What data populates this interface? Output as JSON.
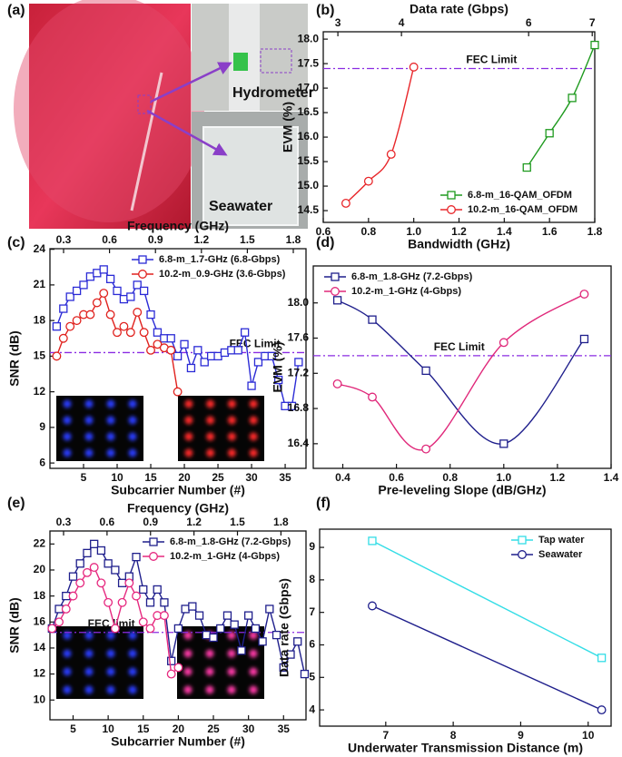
{
  "photo": {
    "panel_label": "(a)",
    "labels": [
      "Hydrometer",
      "Seawater"
    ]
  },
  "chart_data": [
    {
      "type": "line",
      "panel_label": "(b)",
      "xlabel": "Bandwidth (GHz)",
      "ylabel": "EVM (%)",
      "x2label": "Data rate (Gbps)",
      "xlim": [
        0.6,
        1.8
      ],
      "xticks": [
        0.6,
        0.8,
        {
          "value": 1,
          "label": "1.0"
        },
        1.2,
        1.4,
        1.6,
        1.8
      ],
      "x2lim": [
        2.77,
        7.04
      ],
      "x2ticks": [
        3,
        4,
        6,
        7
      ],
      "ylim": [
        14.26,
        18.15
      ],
      "yticks": [
        14.5,
        {
          "value": 15,
          "label": "15.0"
        },
        15.5,
        {
          "value": 16,
          "label": "16.0"
        },
        16.5,
        {
          "value": 17,
          "label": "17.0"
        },
        17.5,
        {
          "value": 18,
          "label": "18.0"
        }
      ],
      "smooth": true,
      "legend": "lower right",
      "hline": {
        "label": "FEC Limit",
        "value": 17.4,
        "color": "#8a2be2"
      },
      "series": [
        {
          "name": "6.8-m_16-QAM_OFDM",
          "color": "#1f9a1f",
          "marker": "square",
          "x": [
            1.5,
            1.6,
            1.7,
            1.8
          ],
          "values": [
            15.38,
            16.08,
            16.8,
            17.88
          ]
        },
        {
          "name": "10.2-m_16-QAM_OFDM",
          "color": "#e8262a",
          "marker": "circle",
          "x": [
            0.7,
            0.8,
            0.9,
            1.0
          ],
          "values": [
            14.65,
            15.1,
            15.65,
            17.43
          ]
        }
      ]
    },
    {
      "type": "line",
      "panel_label": "(c)",
      "xlabel": "Subcarrier Number (#)",
      "ylabel": "SNR (dB)",
      "x2label": "Frequency (GHz)",
      "xlim": [
        0,
        38.1
      ],
      "xticks": [
        5,
        10,
        15,
        20,
        25,
        30,
        35
      ],
      "x2lim": [
        0.211,
        1.883
      ],
      "x2ticks": [
        0.3,
        0.6,
        0.9,
        1.2,
        1.5,
        1.8
      ],
      "ylim": [
        5.55,
        24.05
      ],
      "yticks": [
        6,
        9,
        12,
        15,
        18,
        21,
        24
      ],
      "smooth": false,
      "legend": "upper right",
      "hline": {
        "label": "FEC Limit",
        "value": 15.3,
        "color": "#8a2be2"
      },
      "series": [
        {
          "name": "6.8-m_1.7-GHz (6.8-Gbps)",
          "color": "#2b2bd6",
          "marker": "square",
          "x": [
            1,
            2,
            3,
            4,
            5,
            6,
            7,
            8,
            9,
            10,
            11,
            12,
            13,
            14,
            15,
            16,
            17,
            18,
            19,
            20,
            21,
            22,
            23,
            24,
            25,
            26,
            27,
            28,
            29,
            30,
            31,
            32,
            33,
            34,
            35,
            36,
            37
          ],
          "values": [
            17.5,
            19,
            20,
            20.5,
            21,
            21.7,
            22,
            22.3,
            21.5,
            20.5,
            19.8,
            20,
            21,
            20.5,
            18.5,
            17,
            16.5,
            16.5,
            15,
            16,
            14,
            15.5,
            14.5,
            15,
            15,
            15.3,
            15.5,
            15.5,
            17,
            12.5,
            14.5,
            15,
            15,
            13,
            10.8,
            10.8,
            14.5
          ]
        },
        {
          "name": "10.2-m_0.9-GHz (3.6-Gbps)",
          "color": "#e0221e",
          "marker": "circle",
          "x": [
            1,
            2,
            3,
            4,
            5,
            6,
            7,
            8,
            9,
            10,
            11,
            12,
            13,
            14,
            15,
            16,
            17,
            18,
            19
          ],
          "values": [
            15,
            16.5,
            17.5,
            18,
            18.5,
            18.5,
            19.5,
            20.3,
            18.5,
            17,
            17.5,
            17,
            18.7,
            17,
            15.5,
            16,
            15.7,
            15.5,
            12
          ]
        }
      ]
    },
    {
      "type": "line",
      "panel_label": "(d)",
      "xlabel": "Pre-leveling Slope (dB/GHz)",
      "ylabel": "EVM (%)",
      "xlim": [
        0.29,
        1.4
      ],
      "xticks": [
        0.4,
        0.6,
        0.8,
        {
          "value": 1,
          "label": "1.0"
        },
        1.2,
        1.4
      ],
      "ylim": [
        16.12,
        18.42
      ],
      "yticks": [
        16.4,
        16.8,
        17.2,
        17.6,
        {
          "value": 18,
          "label": "18.0"
        }
      ],
      "smooth": true,
      "legend": "upper left",
      "hline": {
        "label": "FEC Limit",
        "value": 17.4,
        "color": "#8a2be2"
      },
      "series": [
        {
          "name": "6.8-m_1.8-GHz (7.2-Gbps)",
          "color": "#1f1f8c",
          "marker": "square",
          "x": [
            0.38,
            0.51,
            0.71,
            1.0,
            1.3
          ],
          "values": [
            18.03,
            17.81,
            17.23,
            16.4,
            17.59
          ]
        },
        {
          "name": "10.2-m_1-GHz (4-Gbps)",
          "color": "#e0287a",
          "marker": "circle",
          "x": [
            0.38,
            0.51,
            0.71,
            1.0,
            1.3
          ],
          "values": [
            17.08,
            16.93,
            16.34,
            17.55,
            18.1
          ]
        }
      ]
    },
    {
      "type": "line",
      "panel_label": "(e)",
      "xlabel": "Subcarrier Number (#)",
      "ylabel": "SNR (dB)",
      "x2label": "Frequency (GHz)",
      "xlim": [
        1.7,
        38.2
      ],
      "xticks": [
        5,
        10,
        15,
        20,
        25,
        30,
        35
      ],
      "x2lim": [
        0.206,
        1.973
      ],
      "x2ticks": [
        0.3,
        0.6,
        0.9,
        1.2,
        1.5,
        1.8
      ],
      "ylim": [
        8.48,
        23
      ],
      "yticks": [
        10,
        12,
        14,
        16,
        18,
        20,
        22
      ],
      "smooth": false,
      "legend": "upper right",
      "hline": {
        "label": "FEC limit",
        "value": 15.2,
        "color": "#8a2be2"
      },
      "series": [
        {
          "name": "6.8-m_1.8-GHz (7.2-Gbps)",
          "color": "#1f1f8c",
          "marker": "square",
          "x": [
            2,
            3,
            4,
            5,
            6,
            7,
            8,
            9,
            10,
            11,
            12,
            13,
            14,
            15,
            16,
            17,
            18,
            19,
            20,
            21,
            22,
            23,
            24,
            25,
            26,
            27,
            28,
            29,
            30,
            31,
            32,
            33,
            34,
            35,
            36,
            37,
            38
          ],
          "values": [
            15.5,
            17,
            18,
            19.5,
            20.5,
            21.3,
            22,
            21.5,
            20.5,
            20,
            19,
            19.5,
            21,
            18.5,
            17.5,
            18.5,
            17.5,
            13,
            15.5,
            17,
            17.2,
            16.5,
            15,
            14.8,
            15.5,
            16.5,
            15.8,
            13.8,
            16.5,
            15.5,
            14.5,
            17,
            15,
            12.5,
            13.5,
            14.5,
            12
          ]
        },
        {
          "name": "10.2-m_1-GHz (4-Gbps)",
          "color": "#e6287f",
          "marker": "circle",
          "x": [
            2,
            3,
            4,
            5,
            6,
            7,
            8,
            9,
            10,
            11,
            12,
            13,
            14,
            15,
            16,
            17,
            18,
            19,
            20
          ],
          "values": [
            15.5,
            16,
            17,
            18,
            19,
            19.8,
            20.2,
            19,
            17.5,
            15.5,
            17.5,
            19,
            18,
            16,
            15.5,
            16.5,
            16.5,
            12,
            12.5
          ]
        }
      ]
    },
    {
      "type": "line",
      "panel_label": "(f)",
      "xlabel": "Underwater Transmission Distance (m)",
      "ylabel": "Data rate (Gbps)",
      "xlim": [
        6.02,
        10.34
      ],
      "xticks": [
        7,
        8,
        9,
        10
      ],
      "ylim": [
        3.5,
        9.56
      ],
      "yticks": [
        4,
        5,
        6,
        7,
        8,
        9
      ],
      "smooth": false,
      "legend": "upper right",
      "series": [
        {
          "name": "Tap water",
          "color": "#33dde6",
          "marker": "square",
          "x": [
            6.8,
            10.2
          ],
          "values": [
            9.2,
            5.6
          ]
        },
        {
          "name": "Seawater",
          "color": "#1f1f8c",
          "marker": "circle",
          "x": [
            6.8,
            10.2
          ],
          "values": [
            7.2,
            4
          ]
        }
      ]
    }
  ]
}
